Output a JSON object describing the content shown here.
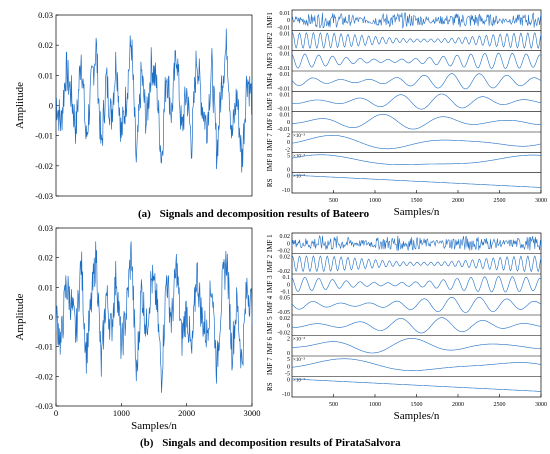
{
  "figure": {
    "captions": [
      {
        "label": "(a)",
        "text": "Signals and decomposition results of Bateero"
      },
      {
        "label": "(b)",
        "text": "Singals and decomposition results of PirataSalvora"
      }
    ]
  },
  "chart_data": [
    {
      "id": "a-signal",
      "type": "line",
      "title": "",
      "xlabel": "",
      "ylabel": "Amplitude",
      "ylim": [
        -0.03,
        0.03
      ],
      "yticks": [
        "0.03",
        "0.02",
        "0.01",
        "0",
        "-0.01",
        "-0.02",
        "-0.03"
      ],
      "xticks": [],
      "xlim": [
        0,
        3000
      ],
      "series": [
        {
          "values": [
            0.002,
            -0.006,
            0.012,
            0.004,
            -0.008,
            0.018,
            -0.012,
            0.006,
            0.02,
            -0.015,
            0.009,
            -0.004,
            0.016,
            -0.01,
            0.003,
            0.022,
            -0.02,
            0.011,
            -0.006,
            0.014,
            0.007,
            -0.018,
            0.012,
            -0.003,
            0.019,
            -0.009,
            0.005,
            -0.013,
            0.017,
            0.001,
            -0.007,
            0.013,
            -0.016,
            0.008,
            0.021,
            -0.011,
            0.004,
            -0.019,
            0.01,
            0.002
          ]
        }
      ]
    },
    {
      "id": "a-decomposition",
      "type": "line",
      "title": "",
      "xlabel": "Samples/n",
      "xlim": [
        0,
        3000
      ],
      "xticks": [
        "500",
        "1000",
        "1500",
        "2000",
        "2500",
        "3000"
      ],
      "rows": [
        {
          "label": "IMF1",
          "ticks": [
            "0.01",
            "0",
            "-0.01"
          ],
          "exponent": "",
          "ylim": [
            -0.01,
            0.01
          ],
          "cycles": 0
        },
        {
          "label": "IMF2",
          "ticks": [
            "0.01",
            "-0.01"
          ],
          "exponent": "",
          "ylim": [
            -0.01,
            0.01
          ],
          "cycles": 36
        },
        {
          "label": "IMF3",
          "ticks": [
            "0.01",
            "-0.01"
          ],
          "exponent": "",
          "ylim": [
            -0.01,
            0.01
          ],
          "cycles": 18
        },
        {
          "label": "IMF4",
          "ticks": [
            "0.01",
            "-0.01"
          ],
          "exponent": "",
          "ylim": [
            -0.01,
            0.01
          ],
          "cycles": 9
        },
        {
          "label": "IMF 5",
          "ticks": [
            "0.01",
            "-0.01"
          ],
          "exponent": "",
          "ylim": [
            -0.01,
            0.01
          ],
          "cycles": 6
        },
        {
          "label": "IMF 6",
          "ticks": [
            "0.01",
            "0",
            "-0.01"
          ],
          "exponent": "",
          "ylim": [
            -0.01,
            0.01
          ],
          "cycles": 4
        },
        {
          "label": "IMF 7",
          "ticks": [
            "2",
            "0",
            "-2"
          ],
          "exponent": "×10⁻³",
          "ylim": [
            -2,
            2
          ],
          "cycles": 2
        },
        {
          "label": "IMF 8",
          "ticks": [
            "5",
            "0"
          ],
          "exponent": "×10⁻³",
          "ylim": [
            -5,
            5
          ],
          "cycles": 1.2
        },
        {
          "label": "RS",
          "ticks": [
            "0",
            "-10"
          ],
          "exponent": "×10⁻⁵",
          "ylim": [
            -10,
            0
          ],
          "cycles": 0
        }
      ]
    },
    {
      "id": "b-signal",
      "type": "line",
      "title": "",
      "xlabel": "Samples/n",
      "ylabel": "Amplitude",
      "ylim": [
        -0.03,
        0.03
      ],
      "yticks": [
        "0.03",
        "0.02",
        "0.01",
        "0",
        "-0.01",
        "-0.02",
        "-0.03"
      ],
      "xticks": [
        "0",
        "1000",
        "2000",
        "3000"
      ],
      "xlim": [
        0,
        3000
      ],
      "series": [
        {
          "values": [
            0.001,
            -0.009,
            0.011,
            0.005,
            -0.006,
            0.019,
            -0.013,
            0.004,
            0.022,
            -0.017,
            0.008,
            -0.005,
            0.015,
            -0.011,
            0.002,
            0.023,
            -0.021,
            0.01,
            -0.004,
            0.013,
            0.006,
            -0.02,
            0.014,
            -0.002,
            0.018,
            -0.008,
            0.003,
            -0.014,
            0.016,
            0.0,
            -0.006,
            0.012,
            -0.018,
            0.009,
            0.02,
            -0.012,
            0.005,
            -0.016,
            0.011,
            0.003
          ]
        }
      ]
    },
    {
      "id": "b-decomposition",
      "type": "line",
      "title": "",
      "xlabel": "Samples/n",
      "xlim": [
        0,
        3000
      ],
      "xticks": [
        "500",
        "1000",
        "1500",
        "2000",
        "2500",
        "3000"
      ],
      "rows": [
        {
          "label": "IMF 1",
          "ticks": [
            "0.02",
            "0",
            "-0.02"
          ],
          "exponent": "",
          "ylim": [
            -0.02,
            0.02
          ],
          "cycles": 0
        },
        {
          "label": "IMF 2",
          "ticks": [
            "0.02",
            "-0.02"
          ],
          "exponent": "",
          "ylim": [
            -0.02,
            0.02
          ],
          "cycles": 36
        },
        {
          "label": "IMF 3",
          "ticks": [
            "0.1",
            "0",
            "-0.1"
          ],
          "exponent": "",
          "ylim": [
            -0.1,
            0.1
          ],
          "cycles": 18
        },
        {
          "label": "IMF 4",
          "ticks": [
            "0.05",
            "-0.05"
          ],
          "exponent": "",
          "ylim": [
            -0.05,
            0.05
          ],
          "cycles": 9
        },
        {
          "label": "IMF 5",
          "ticks": [
            "0.02",
            "0",
            "-0.02"
          ],
          "exponent": "",
          "ylim": [
            -0.02,
            0.02
          ],
          "cycles": 6
        },
        {
          "label": "IMF 6",
          "ticks": [
            "2",
            "0"
          ],
          "exponent": "×10⁻³",
          "ylim": [
            -2,
            2
          ],
          "cycles": 3
        },
        {
          "label": "IMF 7",
          "ticks": [
            "5",
            "0",
            "-5"
          ],
          "exponent": "×10⁻³",
          "ylim": [
            -5,
            5
          ],
          "cycles": 1.5
        },
        {
          "label": "RS",
          "ticks": [
            "0",
            "-10"
          ],
          "exponent": "×10⁻⁵",
          "ylim": [
            -10,
            0
          ],
          "cycles": 0
        }
      ]
    }
  ]
}
